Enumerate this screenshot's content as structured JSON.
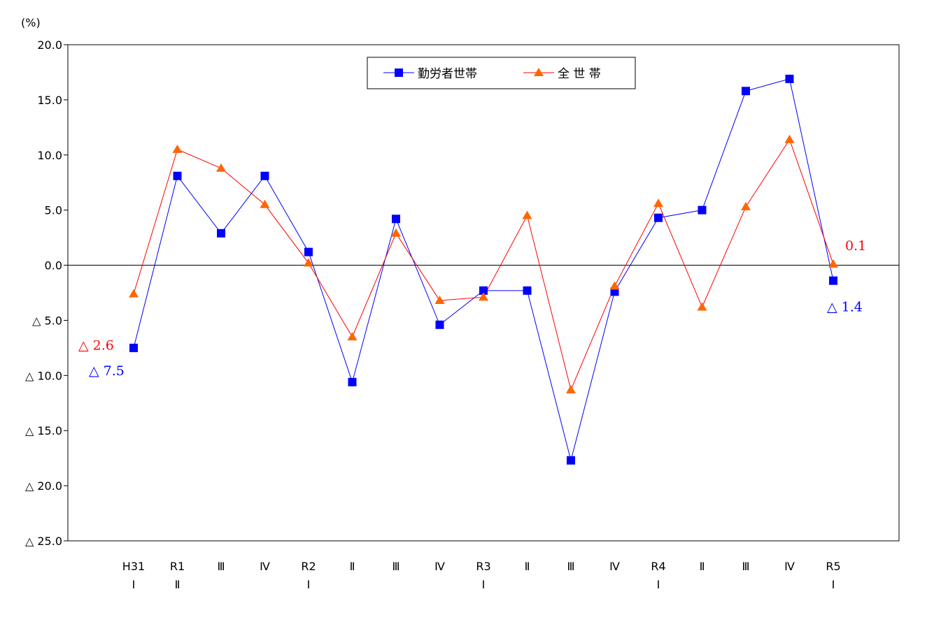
{
  "chart_data": {
    "type": "line",
    "unit_label": "(%)",
    "ylim": [
      -25,
      20
    ],
    "y_ticks": [
      20,
      15,
      10,
      5,
      0,
      -5,
      -10,
      -15,
      -20,
      -25
    ],
    "y_tick_labels": [
      "20.0",
      "15.0",
      "10.0",
      "5.0",
      "0.0",
      "△ 5.0",
      "△ 10.0",
      "△ 15.0",
      "△ 20.0",
      "△ 25.0"
    ],
    "categories": [
      [
        "H31",
        "Ⅰ"
      ],
      [
        "R1",
        "Ⅱ"
      ],
      [
        "Ⅲ",
        ""
      ],
      [
        "Ⅳ",
        ""
      ],
      [
        "R2",
        "Ⅰ"
      ],
      [
        "Ⅱ",
        ""
      ],
      [
        "Ⅲ",
        ""
      ],
      [
        "Ⅳ",
        ""
      ],
      [
        "R3",
        "Ⅰ"
      ],
      [
        "Ⅱ",
        ""
      ],
      [
        "Ⅲ",
        ""
      ],
      [
        "Ⅳ",
        ""
      ],
      [
        "R4",
        "Ⅰ"
      ],
      [
        "Ⅱ",
        ""
      ],
      [
        "Ⅲ",
        ""
      ],
      [
        "Ⅳ",
        ""
      ],
      [
        "R5",
        "Ⅰ"
      ]
    ],
    "series": [
      {
        "name": "勤労者世帯",
        "marker": "square",
        "color": "#0000ff",
        "values": [
          -7.5,
          8.1,
          2.9,
          8.1,
          1.2,
          -10.6,
          4.2,
          -5.4,
          -2.3,
          -2.3,
          -17.7,
          -2.4,
          4.3,
          5.0,
          15.8,
          16.9,
          -1.4
        ]
      },
      {
        "name": "全 世 帯",
        "marker": "triangle",
        "line_color": "#ff0000",
        "marker_color": "#ff6600",
        "values": [
          -2.6,
          10.5,
          8.8,
          5.5,
          0.2,
          -6.5,
          2.9,
          -3.2,
          -2.9,
          4.5,
          -11.3,
          -1.9,
          5.6,
          -3.8,
          5.3,
          11.4,
          0.1
        ]
      }
    ],
    "legend": {
      "position": "top-center",
      "entries": [
        "勤労者世帯",
        "全 世 帯"
      ]
    },
    "annotations": [
      {
        "text": "△ 2.6",
        "color": "#ff0000",
        "series": 1,
        "index": 0
      },
      {
        "text": "△ 7.5",
        "color": "#0000ff",
        "series": 0,
        "index": 0
      },
      {
        "text": "0.1",
        "color": "#ff0000",
        "series": 1,
        "index": 16
      },
      {
        "text": "△ 1.4",
        "color": "#0000ff",
        "series": 0,
        "index": 16
      }
    ],
    "grid": false,
    "zero_line": true
  }
}
